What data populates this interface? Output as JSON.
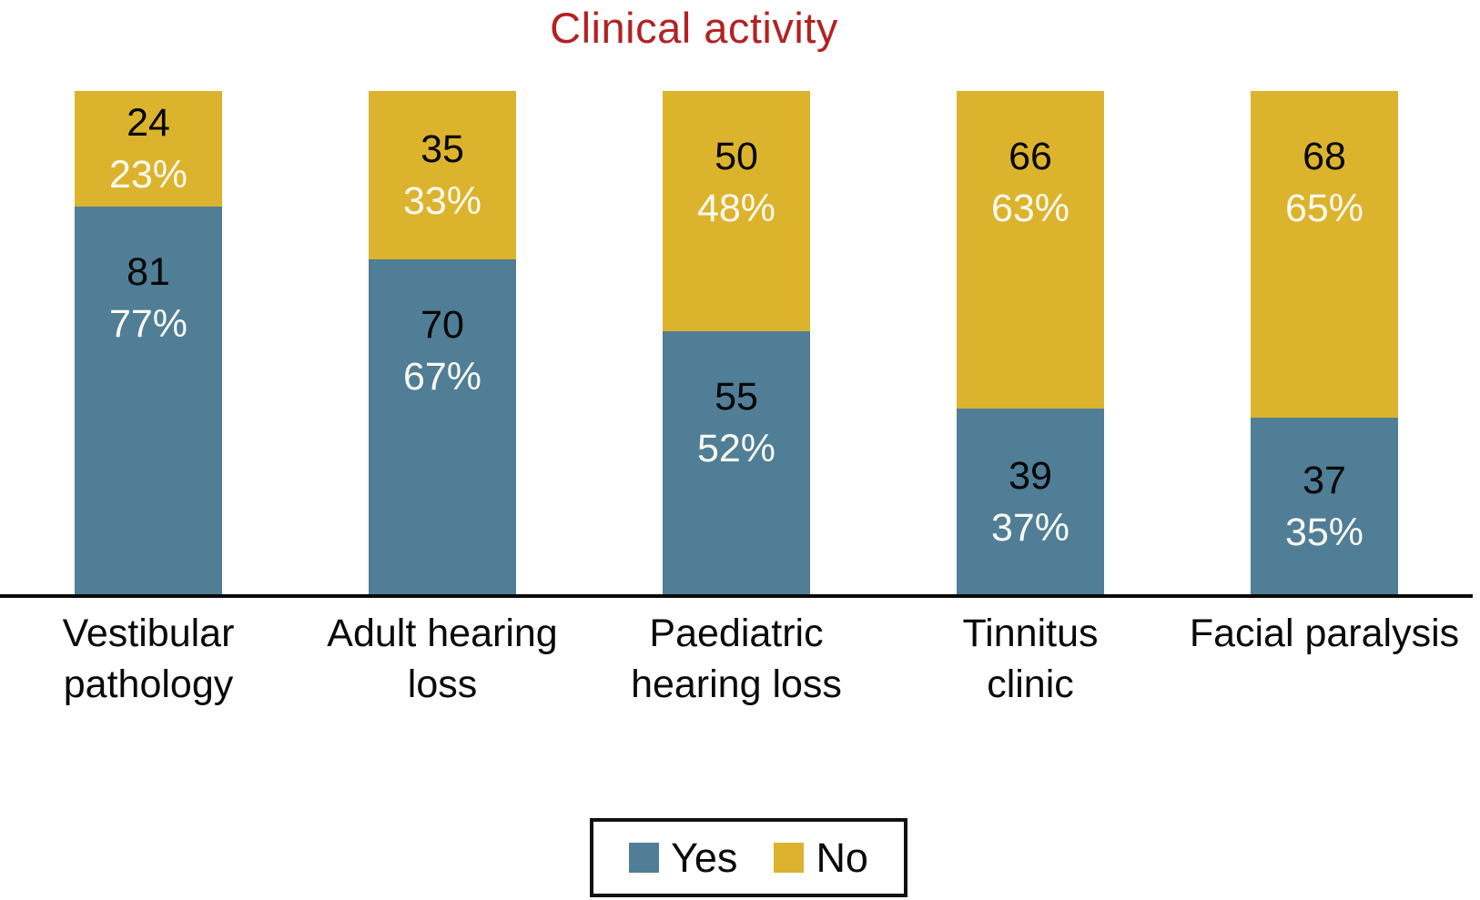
{
  "title": {
    "text": "Clinical activity",
    "color": "#B22222"
  },
  "chart_data": {
    "type": "bar",
    "variant": "stacked-column",
    "title": "Clinical activity",
    "categories": [
      "Vestibular pathology",
      "Adult hearing loss",
      "Paediatric hearing loss",
      "Tinnitus clinic",
      "Facial paralysis"
    ],
    "category_lines": [
      [
        "Vestibular",
        "pathology"
      ],
      [
        "Adult hearing",
        "loss"
      ],
      [
        "Paediatric",
        "hearing loss"
      ],
      [
        "Tinnitus",
        "clinic"
      ],
      [
        "Facial paralysis"
      ]
    ],
    "series": [
      {
        "name": "Yes",
        "color": "#4F7E96",
        "values": [
          81,
          70,
          55,
          39,
          37
        ],
        "percent_labels": [
          "77%",
          "67%",
          "52%",
          "37%",
          "35%"
        ]
      },
      {
        "name": "No",
        "color": "#DCB32D",
        "values": [
          24,
          35,
          50,
          66,
          68
        ],
        "percent_labels": [
          "23%",
          "33%",
          "48%",
          "63%",
          "65%"
        ]
      }
    ],
    "value_label_color": "#060606",
    "percent_label_color": "#FAF9F0",
    "legend_position": "bottom",
    "grid": false,
    "xlabel": "",
    "ylabel": ""
  },
  "legend": {
    "items": [
      {
        "label": "Yes",
        "color": "#4F7E96"
      },
      {
        "label": "No",
        "color": "#DCB32D"
      }
    ]
  }
}
